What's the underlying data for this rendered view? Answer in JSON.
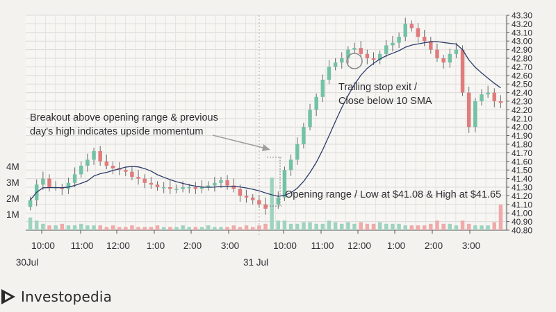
{
  "brand": {
    "name": "Investopedia"
  },
  "colors": {
    "up": "#74c2a6",
    "down": "#e07c7c",
    "volume_up": "#9fd3c0",
    "volume_down": "#efaaaa",
    "sma": "#2b3a67",
    "grid": "#d9d9d9",
    "background": "#f3f2ef",
    "annotation_arrow": "#9e9e9e"
  },
  "annotations": {
    "breakout_line1": "Breakout above opening range & previous",
    "breakout_line2": "day's high indicates upside momentum",
    "trailing_line1": "Trailing stop exit /",
    "trailing_line2": "Close below 10 SMA",
    "opening_range": "Opening range / Low at $41.08 & High at $41.65"
  },
  "chart_data": {
    "type": "candlestick",
    "title": "",
    "price_axis": {
      "side": "right",
      "range": [
        40.8,
        43.3
      ],
      "ticks": [
        "40.80",
        "40.90",
        "41.00",
        "41.10",
        "41.20",
        "41.30",
        "41.40",
        "41.50",
        "41.60",
        "41.70",
        "41.80",
        "41.90",
        "42.00",
        "42.10",
        "42.20",
        "42.30",
        "42.40",
        "42.50",
        "42.60",
        "42.70",
        "42.80",
        "42.90",
        "43.00",
        "43.10",
        "43.20",
        "43.30"
      ]
    },
    "volume_axis": {
      "side": "left",
      "ticks": [
        "1M",
        "2M",
        "3M",
        "4M"
      ]
    },
    "time_axis": {
      "ticks": [
        "10:00",
        "11:00",
        "12:00",
        "1:00",
        "2:00",
        "3:00",
        "10:00",
        "11:00",
        "12:00",
        "1:00",
        "2:00",
        "3:00"
      ],
      "day_labels": [
        "30Jul",
        "31 Jul"
      ]
    },
    "grid": true,
    "legend": "none",
    "sma_period": 10,
    "opening_range": {
      "low": 41.08,
      "high": 41.65
    },
    "close_approx": [
      41.15,
      41.33,
      41.4,
      41.3,
      41.3,
      41.28,
      41.35,
      41.45,
      41.55,
      41.62,
      41.72,
      41.6,
      41.55,
      41.52,
      41.5,
      41.48,
      41.42,
      41.4,
      41.35,
      41.33,
      41.3,
      41.3,
      41.28,
      41.28,
      41.3,
      41.3,
      41.28,
      41.3,
      41.32,
      41.35,
      41.38,
      41.32,
      41.28,
      41.2,
      41.18,
      41.15,
      41.1,
      41.05,
      41.1,
      41.18,
      41.5,
      41.62,
      41.8,
      42.0,
      42.2,
      42.35,
      42.55,
      42.7,
      42.75,
      42.8,
      42.9,
      42.92,
      42.85,
      42.8,
      42.78,
      42.85,
      42.95,
      42.98,
      43.05,
      43.2,
      43.15,
      43.05,
      43.0,
      42.9,
      42.8,
      42.75,
      42.85,
      42.9,
      42.4,
      42.0,
      42.3,
      42.38,
      42.4,
      42.3,
      42.28
    ],
    "volume_approx_millions": [
      0.8,
      0.6,
      0.4,
      0.3,
      0.3,
      0.4,
      0.3,
      0.3,
      0.4,
      0.3,
      0.3,
      0.3,
      0.2,
      0.3,
      0.2,
      0.2,
      0.3,
      0.2,
      0.2,
      0.2,
      0.3,
      0.2,
      0.2,
      0.2,
      0.3,
      0.2,
      0.2,
      0.2,
      0.3,
      0.2,
      0.2,
      0.2,
      0.3,
      0.2,
      0.3,
      0.2,
      0.3,
      0.4,
      3.3,
      0.6,
      0.6,
      0.4,
      0.4,
      0.5,
      0.5,
      0.4,
      0.4,
      0.6,
      0.5,
      0.4,
      0.5,
      0.4,
      0.5,
      0.4,
      0.4,
      0.5,
      0.4,
      0.4,
      0.4,
      0.3,
      0.3,
      0.3,
      0.3,
      0.4,
      0.6,
      0.4,
      0.4,
      0.3,
      0.6,
      0.4,
      0.3,
      0.3,
      0.3,
      0.5,
      1.6
    ]
  }
}
